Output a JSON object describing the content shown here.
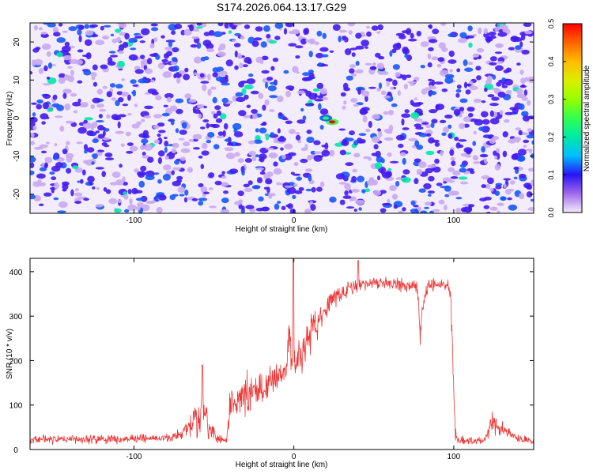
{
  "title": "S174.2026.064.13.17.G29",
  "chart_data": [
    {
      "type": "heatmap",
      "xlabel": "Height of straight line (km)",
      "ylabel": "Frequency (Hz)",
      "xlim": [
        -165,
        150
      ],
      "ylim": [
        -25,
        25
      ],
      "xticks": [
        -100,
        0,
        100
      ],
      "yticks": [
        -20,
        -10,
        0,
        10,
        20
      ],
      "colorbar": {
        "label": "Normalized spectral amplitude",
        "range": [
          0,
          0.5
        ],
        "ticks": [
          0.0,
          0.1,
          0.2,
          0.3,
          0.4,
          0.5
        ]
      },
      "features": [
        {
          "x": 24,
          "y": -1,
          "amplitude": 0.5
        },
        {
          "x": 20,
          "y": 0,
          "amplitude": 0.25
        }
      ],
      "grid": false
    },
    {
      "type": "line",
      "xlabel": "Height of straight line (km)",
      "ylabel": "SNR (10 * v/v)",
      "xlim": [
        -165,
        150
      ],
      "ylim": [
        0,
        430
      ],
      "xticks": [
        -100,
        0,
        100
      ],
      "yticks": [
        0,
        100,
        200,
        300,
        400
      ],
      "line_color": "#ef3737",
      "envelope": {
        "x": [
          -165,
          -80,
          -70,
          -63,
          -58,
          -55,
          -50,
          -45,
          -42,
          -40,
          -35,
          -30,
          -25,
          -20,
          -15,
          -10,
          -5,
          -3,
          -1,
          5,
          10,
          15,
          20,
          25,
          30,
          35,
          40,
          45,
          50,
          60,
          70,
          76,
          78,
          79,
          80,
          82,
          84,
          90,
          95,
          97,
          98,
          99,
          100,
          101,
          102,
          110,
          120,
          124,
          126,
          130,
          135,
          140,
          150
        ],
        "mean": [
          22,
          25,
          35,
          60,
          80,
          60,
          30,
          22,
          20,
          100,
          110,
          120,
          130,
          140,
          150,
          160,
          180,
          260,
          190,
          220,
          260,
          290,
          320,
          340,
          355,
          365,
          370,
          372,
          375,
          375,
          370,
          370,
          330,
          250,
          310,
          340,
          365,
          370,
          370,
          365,
          345,
          260,
          130,
          40,
          20,
          20,
          22,
          60,
          55,
          45,
          35,
          25,
          18
        ],
        "noise": [
          10,
          10,
          15,
          40,
          50,
          40,
          15,
          10,
          8,
          40,
          40,
          45,
          45,
          45,
          45,
          45,
          45,
          60,
          45,
          45,
          40,
          35,
          30,
          25,
          20,
          18,
          15,
          15,
          15,
          15,
          15,
          15,
          40,
          30,
          30,
          25,
          20,
          15,
          15,
          15,
          25,
          40,
          40,
          20,
          10,
          10,
          10,
          25,
          25,
          15,
          15,
          10,
          8
        ]
      },
      "spikes": [
        {
          "x": -0.5,
          "y": 430
        },
        {
          "x": -57,
          "y": 190
        },
        {
          "x": 40,
          "y": 425
        }
      ],
      "grid": false
    }
  ]
}
